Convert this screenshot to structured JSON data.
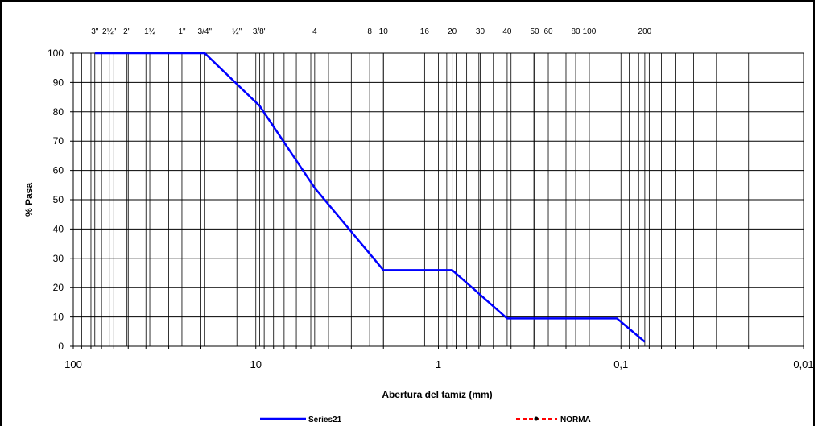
{
  "chart_data": {
    "type": "line",
    "x_scale": "log",
    "x_reversed": true,
    "xlim": [
      100,
      0.01
    ],
    "ylim": [
      0,
      100
    ],
    "yticks": [
      0,
      10,
      20,
      30,
      40,
      50,
      60,
      70,
      80,
      90,
      100
    ],
    "xticks": [
      {
        "value": 100,
        "label": "100"
      },
      {
        "value": 10,
        "label": "10"
      },
      {
        "value": 1,
        "label": "1"
      },
      {
        "value": 0.1,
        "label": "0,1"
      },
      {
        "value": 0.01,
        "label": "0,01"
      }
    ],
    "xlabel": "Abertura del tamiz (mm)",
    "ylabel": "% Pasa",
    "sieves": [
      {
        "label": "3\"",
        "size": 76.2
      },
      {
        "label": "2½\"",
        "size": 63.5
      },
      {
        "label": "2\"",
        "size": 50.8
      },
      {
        "label": "1½",
        "size": 38.1
      },
      {
        "label": "1\"",
        "size": 25.4
      },
      {
        "label": "3/4\"",
        "size": 19.05
      },
      {
        "label": "½\"",
        "size": 12.7
      },
      {
        "label": "3/8\"",
        "size": 9.525
      },
      {
        "label": "4",
        "size": 4.76
      },
      {
        "label": "8",
        "size": 2.38
      },
      {
        "label": "10",
        "size": 2.0
      },
      {
        "label": "16",
        "size": 1.19
      },
      {
        "label": "20",
        "size": 0.84
      },
      {
        "label": "30",
        "size": 0.59
      },
      {
        "label": "40",
        "size": 0.42
      },
      {
        "label": "50",
        "size": 0.297
      },
      {
        "label": "60",
        "size": 0.25
      },
      {
        "label": "80",
        "size": 0.177
      },
      {
        "label": "100",
        "size": 0.149
      },
      {
        "label": "200",
        "size": 0.074
      }
    ],
    "series": [
      {
        "name": "Series21",
        "color": "#0000ff",
        "points": [
          {
            "x": 76.2,
            "y": 100
          },
          {
            "x": 19.05,
            "y": 100
          },
          {
            "x": 9.525,
            "y": 82
          },
          {
            "x": 4.76,
            "y": 54
          },
          {
            "x": 2.0,
            "y": 26
          },
          {
            "x": 0.84,
            "y": 26
          },
          {
            "x": 0.42,
            "y": 9.5
          },
          {
            "x": 0.105,
            "y": 9.5
          },
          {
            "x": 0.074,
            "y": 1.5
          }
        ]
      },
      {
        "name": "NORMA",
        "color": "#ff0000",
        "points": []
      }
    ],
    "grid": true,
    "legend_position": "bottom"
  }
}
